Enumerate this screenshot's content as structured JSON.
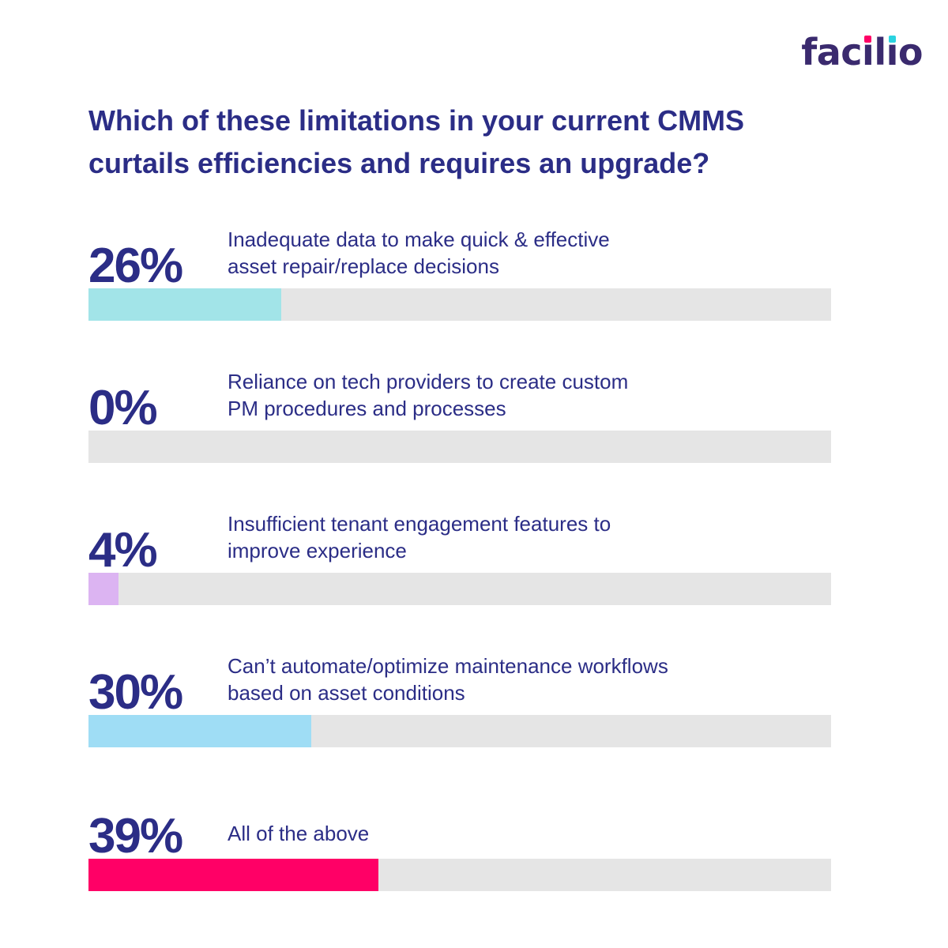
{
  "brand": {
    "name_parts": [
      "fac",
      "i",
      "l",
      "i",
      "o"
    ],
    "dot_colors": [
      "#ff0066",
      "#2ad3e0"
    ]
  },
  "title": "Which of these limitations in your current CMMS curtails efficiencies and requires an upgrade?",
  "chart_data": {
    "type": "bar",
    "orientation": "horizontal",
    "ylim": [
      0,
      100
    ],
    "unit": "%",
    "categories": [
      "Inadequate data to make quick & effective asset repair/replace decisions",
      "Reliance on tech providers to create custom PM procedures and processes",
      "Insufficient tenant engagement features to improve experience",
      "Can’t automate/optimize maintenance workflows based on asset conditions",
      "All of the above"
    ],
    "values": [
      26,
      0,
      4,
      30,
      39
    ],
    "value_labels": [
      "26%",
      "0%",
      "4%",
      "30%",
      "39%"
    ],
    "label_lines": [
      [
        "Inadequate data to make quick & effective",
        "asset repair/replace decisions"
      ],
      [
        "Reliance on tech providers to create custom",
        "PM procedures and processes"
      ],
      [
        "Insufficient tenant engagement features to",
        "improve experience"
      ],
      [
        "Can’t automate/optimize maintenance workflows",
        "based on asset conditions"
      ],
      [
        "All of the above"
      ]
    ],
    "colors": [
      "#a2e4e8",
      "#e5e5e5",
      "#dcb4f2",
      "#9fddf5",
      "#ff0066"
    ],
    "track_color": "#e5e5e5"
  }
}
